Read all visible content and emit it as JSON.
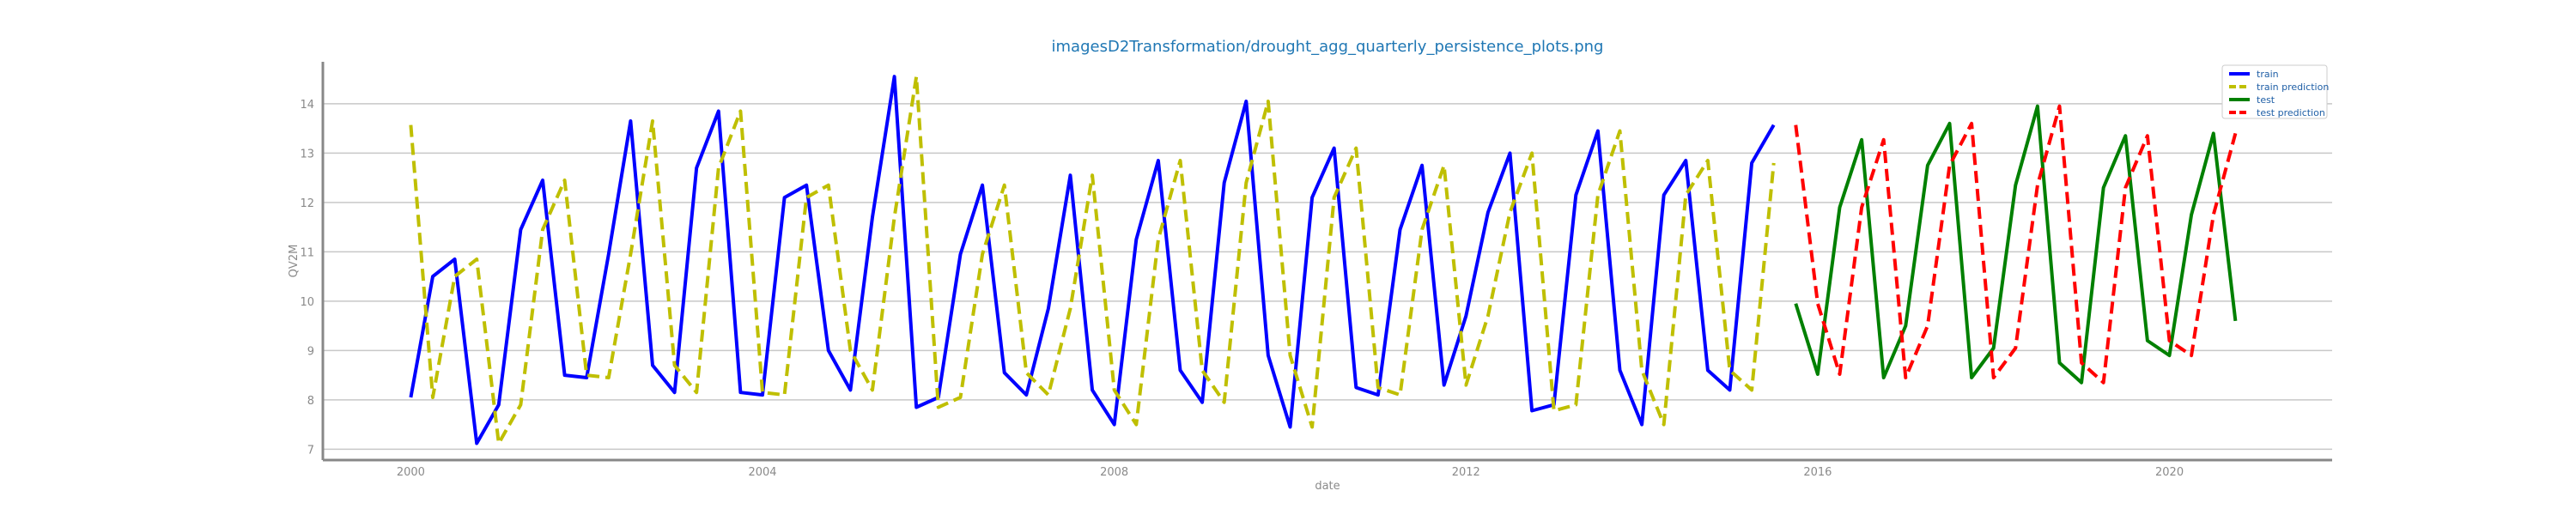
{
  "title": "imagesD2Transformation/drought_agg_quarterly_persistence_plots.png",
  "chart_data": {
    "type": "line",
    "title": "imagesD2Transformation/drought_agg_quarterly_persistence_plots.png",
    "xlabel": "date",
    "ylabel": "QV2M",
    "xlim": [
      1999.0,
      2021.85
    ],
    "ylim": [
      6.78,
      14.85
    ],
    "x_ticks": [
      2000,
      2004,
      2008,
      2012,
      2016,
      2020
    ],
    "y_ticks": [
      7,
      8,
      9,
      10,
      11,
      12,
      13,
      14
    ],
    "grid": "horizontal",
    "legend_position": "top-right",
    "series": [
      {
        "name": "train",
        "color": "#0000ff",
        "style": "solid",
        "x": [
          2000.0,
          2000.25,
          2000.5,
          2000.75,
          2001.0,
          2001.25,
          2001.5,
          2001.75,
          2002.0,
          2002.25,
          2002.5,
          2002.75,
          2003.0,
          2003.25,
          2003.5,
          2003.75,
          2004.0,
          2004.25,
          2004.5,
          2004.75,
          2005.0,
          2005.25,
          2005.5,
          2005.75,
          2006.0,
          2006.25,
          2006.5,
          2006.75,
          2007.0,
          2007.25,
          2007.5,
          2007.75,
          2008.0,
          2008.25,
          2008.5,
          2008.75,
          2009.0,
          2009.25,
          2009.5,
          2009.75,
          2010.0,
          2010.25,
          2010.5,
          2010.75,
          2011.0,
          2011.25,
          2011.5,
          2011.75,
          2012.0,
          2012.25,
          2012.5,
          2012.75,
          2013.0,
          2013.25,
          2013.5,
          2013.75,
          2014.0,
          2014.25,
          2014.5,
          2014.75,
          2015.0,
          2015.25,
          2015.5
        ],
        "values": [
          8.05,
          10.5,
          10.85,
          7.12,
          7.9,
          11.45,
          12.45,
          8.5,
          8.45,
          10.95,
          13.65,
          8.7,
          8.15,
          12.7,
          13.85,
          8.15,
          8.1,
          12.1,
          12.35,
          9.0,
          8.2,
          11.7,
          14.55,
          7.85,
          8.05,
          10.95,
          12.35,
          8.55,
          8.1,
          9.85,
          12.55,
          8.2,
          7.5,
          11.25,
          12.85,
          8.6,
          7.95,
          12.4,
          14.05,
          8.9,
          7.45,
          12.1,
          13.1,
          8.25,
          8.1,
          11.45,
          12.75,
          8.3,
          9.7,
          11.8,
          13.0,
          7.78,
          7.9,
          12.15,
          13.45,
          8.6,
          7.5,
          12.15,
          12.85,
          8.6,
          8.2,
          12.8,
          13.57
        ]
      },
      {
        "name": "train prediction",
        "color": "#bfbf00",
        "style": "dashed",
        "x": [
          2000.0,
          2000.25,
          2000.5,
          2000.75,
          2001.0,
          2001.25,
          2001.5,
          2001.75,
          2002.0,
          2002.25,
          2002.5,
          2002.75,
          2003.0,
          2003.25,
          2003.5,
          2003.75,
          2004.0,
          2004.25,
          2004.5,
          2004.75,
          2005.0,
          2005.25,
          2005.5,
          2005.75,
          2006.0,
          2006.25,
          2006.5,
          2006.75,
          2007.0,
          2007.25,
          2007.5,
          2007.75,
          2008.0,
          2008.25,
          2008.5,
          2008.75,
          2009.0,
          2009.25,
          2009.5,
          2009.75,
          2010.0,
          2010.25,
          2010.5,
          2010.75,
          2011.0,
          2011.25,
          2011.5,
          2011.75,
          2012.0,
          2012.25,
          2012.5,
          2012.75,
          2013.0,
          2013.25,
          2013.5,
          2013.75,
          2014.0,
          2014.25,
          2014.5,
          2014.75,
          2015.0,
          2015.25,
          2015.5
        ],
        "values": [
          13.57,
          8.05,
          10.5,
          10.85,
          7.12,
          7.9,
          11.45,
          12.45,
          8.5,
          8.45,
          10.95,
          13.65,
          8.7,
          8.15,
          12.7,
          13.85,
          8.15,
          8.1,
          12.1,
          12.35,
          9.0,
          8.2,
          11.7,
          14.55,
          7.85,
          8.05,
          10.95,
          12.35,
          8.55,
          8.1,
          9.85,
          12.55,
          8.2,
          7.5,
          11.25,
          12.85,
          8.6,
          7.95,
          12.4,
          14.05,
          8.9,
          7.45,
          12.1,
          13.1,
          8.25,
          8.1,
          11.45,
          12.75,
          8.3,
          9.7,
          11.8,
          13.0,
          7.78,
          7.9,
          12.15,
          13.45,
          8.6,
          7.5,
          12.15,
          12.85,
          8.6,
          8.2,
          12.8
        ]
      },
      {
        "name": "test",
        "color": "#008000",
        "style": "solid",
        "x": [
          2015.75,
          2016.0,
          2016.25,
          2016.5,
          2016.75,
          2017.0,
          2017.25,
          2017.5,
          2017.75,
          2018.0,
          2018.25,
          2018.5,
          2018.75,
          2019.0,
          2019.25,
          2019.5,
          2019.75,
          2020.0,
          2020.25,
          2020.5,
          2020.75
        ],
        "values": [
          9.95,
          8.52,
          11.9,
          13.27,
          8.45,
          9.5,
          12.75,
          13.6,
          8.45,
          9.05,
          12.35,
          13.95,
          8.75,
          8.35,
          12.3,
          13.35,
          9.2,
          8.9,
          11.75,
          13.4,
          9.6
        ]
      },
      {
        "name": "test prediction",
        "color": "#ff0000",
        "style": "dashed",
        "x": [
          2015.75,
          2016.0,
          2016.25,
          2016.5,
          2016.75,
          2017.0,
          2017.25,
          2017.5,
          2017.75,
          2018.0,
          2018.25,
          2018.5,
          2018.75,
          2019.0,
          2019.25,
          2019.5,
          2019.75,
          2020.0,
          2020.25,
          2020.5,
          2020.75
        ],
        "values": [
          13.57,
          9.95,
          8.52,
          11.9,
          13.27,
          8.45,
          9.5,
          12.75,
          13.6,
          8.45,
          9.05,
          12.35,
          13.95,
          8.75,
          8.35,
          12.3,
          13.35,
          9.2,
          8.9,
          11.75,
          13.4
        ]
      }
    ]
  }
}
